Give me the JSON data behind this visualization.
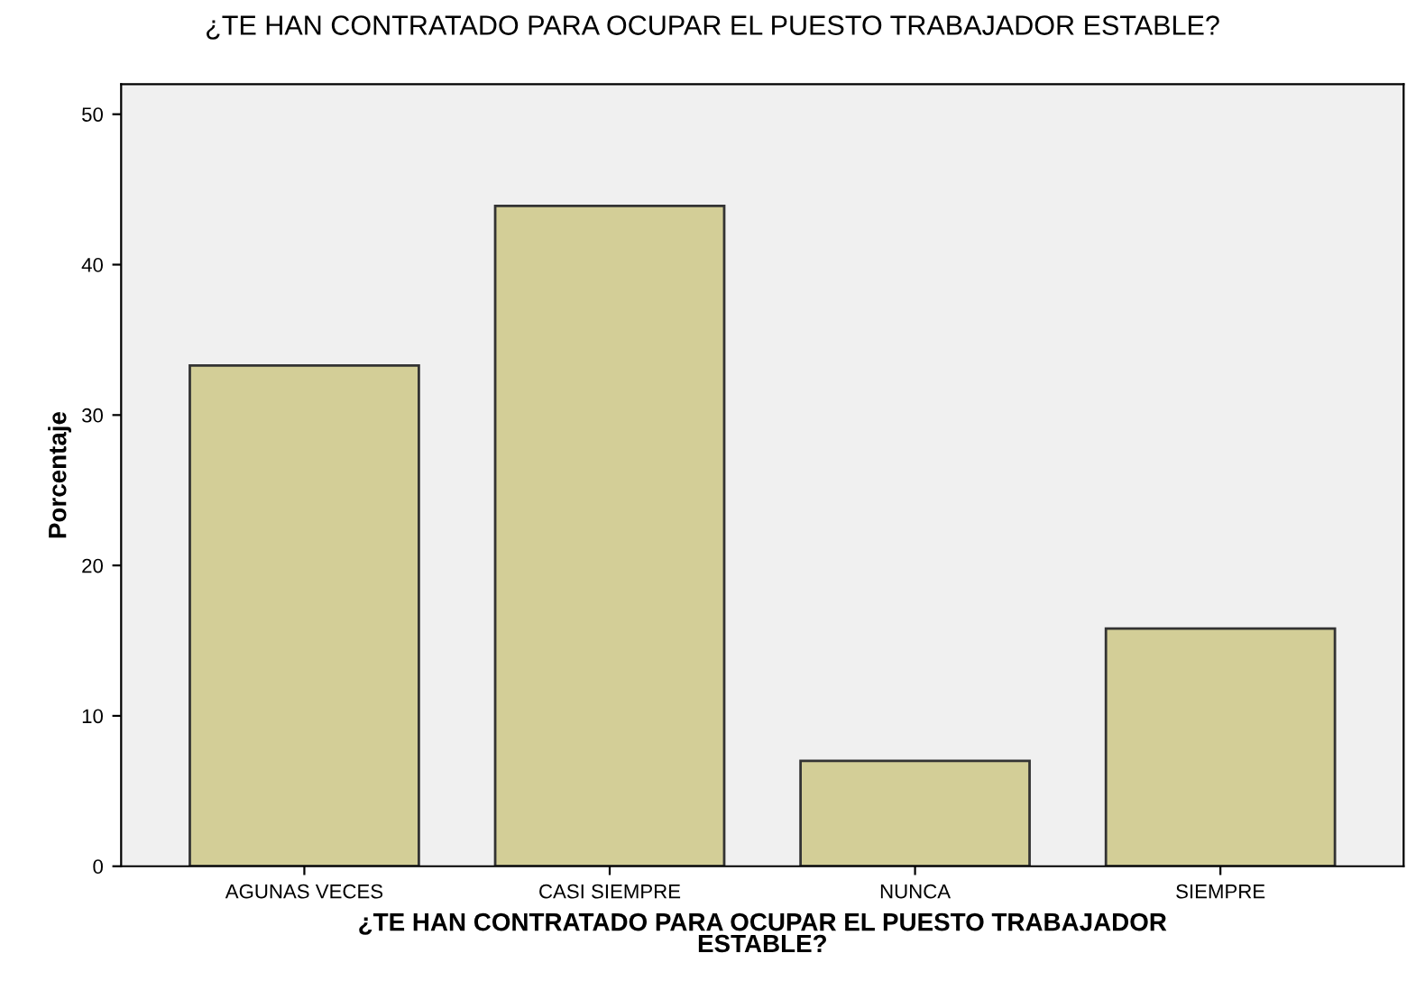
{
  "chart_data": {
    "type": "bar",
    "title": "¿TE HAN CONTRATADO PARA OCUPAR EL PUESTO TRABAJADOR ESTABLE?",
    "xlabel": "¿TE HAN CONTRATADO PARA OCUPAR EL PUESTO TRABAJADOR\nESTABLE?",
    "ylabel": "Porcentaje",
    "categories": [
      "AGUNAS VECES",
      "CASI SIEMPRE",
      "NUNCA",
      "SIEMPRE"
    ],
    "values": [
      33.3,
      43.9,
      7.0,
      15.8
    ],
    "color": "#d3ce97",
    "ylim": [
      0,
      52
    ],
    "yticks": [
      0,
      10,
      20,
      30,
      40,
      50
    ],
    "grid": false,
    "legend": false
  }
}
